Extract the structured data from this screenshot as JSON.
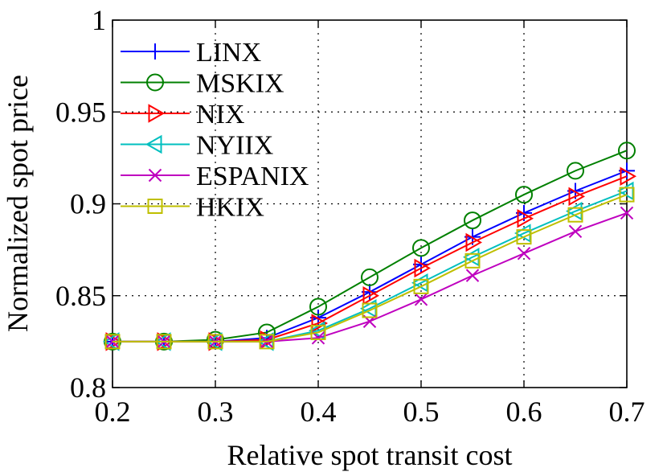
{
  "chart_data": {
    "type": "line",
    "xlabel": "Relative spot transit cost",
    "ylabel": "Normalized spot price",
    "xlim": [
      0.2,
      0.7
    ],
    "ylim": [
      0.8,
      1.0
    ],
    "x_ticks": [
      "0.2",
      "0.3",
      "0.4",
      "0.5",
      "0.6",
      "0.7"
    ],
    "y_ticks": [
      "0.8",
      "0.85",
      "0.9",
      "0.95",
      "1"
    ],
    "grid": true,
    "legend_position": "top-left",
    "x": [
      0.2,
      0.25,
      0.3,
      0.35,
      0.4,
      0.45,
      0.5,
      0.55,
      0.6,
      0.65,
      0.7
    ],
    "series": [
      {
        "name": "LINX",
        "color": "#0000ff",
        "marker": "plus",
        "values": [
          0.825,
          0.825,
          0.825,
          0.827,
          0.838,
          0.852,
          0.867,
          0.882,
          0.895,
          0.907,
          0.918
        ]
      },
      {
        "name": "MSKIX",
        "color": "#008000",
        "marker": "circle",
        "values": [
          0.825,
          0.825,
          0.826,
          0.83,
          0.844,
          0.86,
          0.876,
          0.891,
          0.905,
          0.918,
          0.929
        ]
      },
      {
        "name": "NIX",
        "color": "#ff0000",
        "marker": "triangle-right",
        "values": [
          0.825,
          0.825,
          0.825,
          0.826,
          0.835,
          0.85,
          0.865,
          0.879,
          0.892,
          0.904,
          0.915
        ]
      },
      {
        "name": "NYIIX",
        "color": "#00bfbf",
        "marker": "triangle-left",
        "values": [
          0.825,
          0.825,
          0.825,
          0.825,
          0.831,
          0.843,
          0.857,
          0.871,
          0.884,
          0.896,
          0.907
        ]
      },
      {
        "name": "ESPANIX",
        "color": "#bf00bf",
        "marker": "x",
        "values": [
          0.825,
          0.825,
          0.825,
          0.825,
          0.827,
          0.836,
          0.848,
          0.861,
          0.873,
          0.885,
          0.895
        ]
      },
      {
        "name": "HKIX",
        "color": "#bfbf00",
        "marker": "square",
        "values": [
          0.825,
          0.825,
          0.825,
          0.825,
          0.83,
          0.842,
          0.855,
          0.869,
          0.882,
          0.894,
          0.905
        ]
      }
    ]
  }
}
